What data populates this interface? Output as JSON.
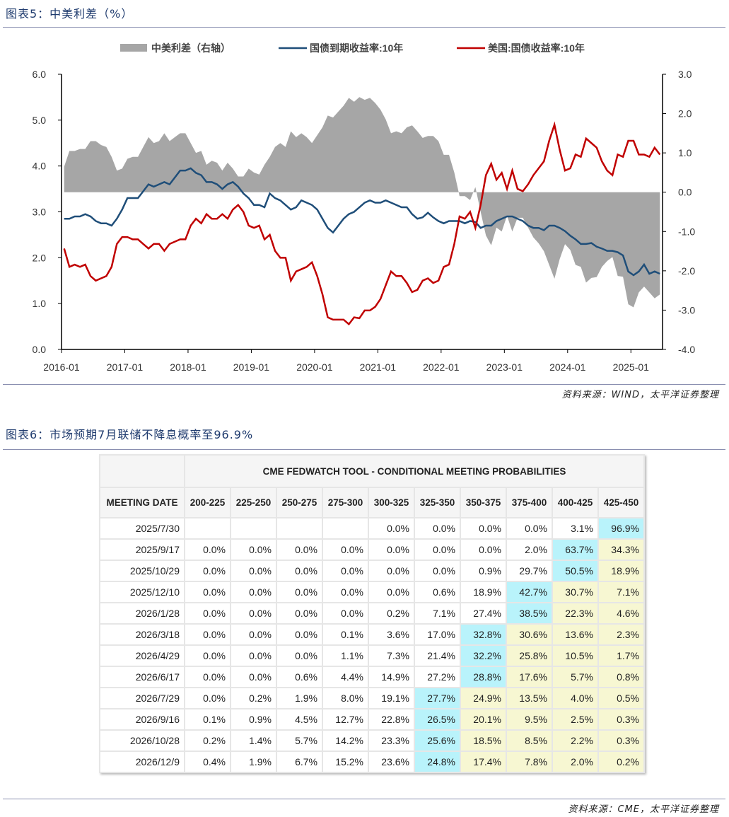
{
  "figure5": {
    "title": "图表5：中美利差（%）",
    "source": "资料来源：WIND，太平洋证券整理"
  },
  "figure6": {
    "title": "图表6：市场预期7月联储不降息概率至96.9%",
    "source": "资料来源：CME，太平洋证券整理"
  },
  "chart_data": {
    "type": "line",
    "title": "",
    "x_ticks": [
      "2016-01",
      "2017-01",
      "2018-01",
      "2019-01",
      "2020-01",
      "2021-01",
      "2022-01",
      "2023-01",
      "2024-01",
      "2025-01"
    ],
    "x_range": [
      "2016-01",
      "2025-06"
    ],
    "left_axis": {
      "range": [
        0,
        6
      ],
      "ticks": [
        "0.0",
        "1.0",
        "2.0",
        "3.0",
        "4.0",
        "5.0",
        "6.0"
      ]
    },
    "right_axis": {
      "range": [
        -4,
        3
      ],
      "ticks": [
        "-4.0",
        "-3.0",
        "-2.0",
        "-1.0",
        "0.0",
        "1.0",
        "2.0",
        "3.0"
      ]
    },
    "legend_position": "top",
    "grid": false,
    "series": [
      {
        "name": "中美利差（右轴）",
        "type": "area",
        "axis": "right",
        "color": "#a6a6a6",
        "derived": "国债到期收益率:10年 minus 美国:国债收益率:10年"
      },
      {
        "name": "国债到期收益率:10年",
        "type": "line",
        "axis": "left",
        "color": "#1f4e79",
        "monthly_values": [
          2.85,
          2.85,
          2.9,
          2.9,
          2.95,
          2.9,
          2.8,
          2.75,
          2.75,
          2.7,
          2.85,
          3.05,
          3.3,
          3.3,
          3.3,
          3.45,
          3.6,
          3.55,
          3.6,
          3.65,
          3.6,
          3.75,
          3.9,
          3.9,
          3.95,
          3.85,
          3.8,
          3.65,
          3.65,
          3.6,
          3.5,
          3.6,
          3.65,
          3.55,
          3.4,
          3.3,
          3.15,
          3.15,
          3.1,
          3.4,
          3.3,
          3.25,
          3.15,
          3.05,
          3.1,
          3.25,
          3.2,
          3.15,
          3.05,
          2.85,
          2.65,
          2.55,
          2.7,
          2.85,
          2.95,
          3.0,
          3.1,
          3.2,
          3.25,
          3.2,
          3.2,
          3.25,
          3.2,
          3.15,
          3.1,
          3.1,
          2.95,
          2.85,
          2.88,
          2.98,
          2.88,
          2.8,
          2.75,
          2.8,
          2.8,
          2.8,
          2.75,
          2.8,
          2.78,
          2.65,
          2.7,
          2.7,
          2.8,
          2.85,
          2.9,
          2.9,
          2.85,
          2.8,
          2.7,
          2.65,
          2.65,
          2.6,
          2.7,
          2.7,
          2.65,
          2.58,
          2.48,
          2.4,
          2.3,
          2.3,
          2.32,
          2.24,
          2.2,
          2.15,
          2.15,
          2.12,
          2.05,
          1.7,
          1.62,
          1.7,
          1.85,
          1.65,
          1.7,
          1.65
        ]
      },
      {
        "name": "美国:国债收益率:10年",
        "type": "line",
        "axis": "left",
        "color": "#c00000",
        "monthly_values": [
          2.2,
          1.8,
          1.85,
          1.8,
          1.85,
          1.6,
          1.5,
          1.55,
          1.6,
          1.8,
          2.3,
          2.45,
          2.45,
          2.4,
          2.4,
          2.3,
          2.2,
          2.3,
          2.3,
          2.15,
          2.3,
          2.35,
          2.4,
          2.4,
          2.7,
          2.85,
          2.75,
          2.95,
          2.85,
          2.85,
          2.95,
          2.85,
          3.05,
          3.15,
          3.0,
          2.7,
          2.65,
          2.7,
          2.4,
          2.5,
          2.15,
          2.0,
          2.0,
          1.5,
          1.7,
          1.75,
          1.8,
          1.9,
          1.6,
          1.2,
          0.7,
          0.65,
          0.65,
          0.65,
          0.55,
          0.7,
          0.68,
          0.85,
          0.85,
          0.93,
          1.1,
          1.4,
          1.7,
          1.6,
          1.6,
          1.45,
          1.25,
          1.3,
          1.5,
          1.55,
          1.45,
          1.5,
          1.8,
          1.85,
          2.3,
          2.9,
          2.85,
          3.0,
          2.65,
          3.15,
          3.8,
          4.05,
          3.7,
          3.85,
          3.5,
          3.9,
          3.5,
          3.45,
          3.6,
          3.8,
          3.95,
          4.1,
          4.55,
          4.9,
          4.35,
          3.9,
          3.95,
          4.25,
          4.2,
          4.6,
          4.5,
          4.4,
          4.1,
          3.9,
          3.8,
          4.25,
          4.2,
          4.55,
          4.55,
          4.25,
          4.25,
          4.2,
          4.4,
          4.25
        ]
      }
    ]
  },
  "table": {
    "title": "CME FEDWATCH TOOL - CONDITIONAL MEETING PROBABILITIES",
    "date_header": "MEETING DATE",
    "columns": [
      "200-225",
      "225-250",
      "250-275",
      "275-300",
      "300-325",
      "325-350",
      "350-375",
      "375-400",
      "400-425",
      "425-450"
    ],
    "colors": {
      "max": "#b9f3fb",
      "above_max": "#f7f7d2"
    },
    "rows": [
      {
        "date": "2025/7/30",
        "values": [
          "",
          "",
          "",
          "",
          "0.0%",
          "0.0%",
          "0.0%",
          "0.0%",
          "3.1%",
          "96.9%"
        ]
      },
      {
        "date": "2025/9/17",
        "values": [
          "0.0%",
          "0.0%",
          "0.0%",
          "0.0%",
          "0.0%",
          "0.0%",
          "0.0%",
          "2.0%",
          "63.7%",
          "34.3%"
        ]
      },
      {
        "date": "2025/10/29",
        "values": [
          "0.0%",
          "0.0%",
          "0.0%",
          "0.0%",
          "0.0%",
          "0.0%",
          "0.9%",
          "29.7%",
          "50.5%",
          "18.9%"
        ]
      },
      {
        "date": "2025/12/10",
        "values": [
          "0.0%",
          "0.0%",
          "0.0%",
          "0.0%",
          "0.0%",
          "0.6%",
          "18.9%",
          "42.7%",
          "30.7%",
          "7.1%"
        ]
      },
      {
        "date": "2026/1/28",
        "values": [
          "0.0%",
          "0.0%",
          "0.0%",
          "0.0%",
          "0.2%",
          "7.1%",
          "27.4%",
          "38.5%",
          "22.3%",
          "4.6%"
        ]
      },
      {
        "date": "2026/3/18",
        "values": [
          "0.0%",
          "0.0%",
          "0.0%",
          "0.1%",
          "3.6%",
          "17.0%",
          "32.8%",
          "30.6%",
          "13.6%",
          "2.3%"
        ]
      },
      {
        "date": "2026/4/29",
        "values": [
          "0.0%",
          "0.0%",
          "0.0%",
          "1.1%",
          "7.3%",
          "21.4%",
          "32.2%",
          "25.8%",
          "10.5%",
          "1.7%"
        ]
      },
      {
        "date": "2026/6/17",
        "values": [
          "0.0%",
          "0.0%",
          "0.6%",
          "4.4%",
          "14.9%",
          "27.2%",
          "28.8%",
          "17.6%",
          "5.7%",
          "0.8%"
        ]
      },
      {
        "date": "2026/7/29",
        "values": [
          "0.0%",
          "0.2%",
          "1.9%",
          "8.0%",
          "19.1%",
          "27.7%",
          "24.9%",
          "13.5%",
          "4.0%",
          "0.5%"
        ]
      },
      {
        "date": "2026/9/16",
        "values": [
          "0.1%",
          "0.9%",
          "4.5%",
          "12.7%",
          "22.8%",
          "26.5%",
          "20.1%",
          "9.5%",
          "2.5%",
          "0.3%"
        ]
      },
      {
        "date": "2026/10/28",
        "values": [
          "0.2%",
          "1.4%",
          "5.7%",
          "14.2%",
          "23.3%",
          "25.6%",
          "18.5%",
          "8.5%",
          "2.2%",
          "0.3%"
        ]
      },
      {
        "date": "2026/12/9",
        "values": [
          "0.4%",
          "1.9%",
          "6.7%",
          "15.2%",
          "23.6%",
          "24.8%",
          "17.4%",
          "7.8%",
          "2.0%",
          "0.2%"
        ]
      }
    ]
  }
}
